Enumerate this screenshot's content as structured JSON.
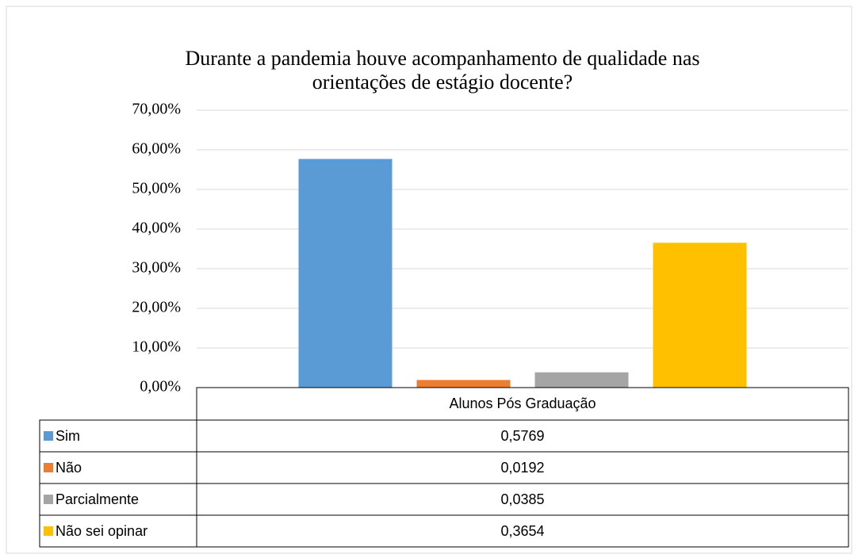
{
  "chart_data": {
    "type": "bar",
    "title": [
      "Durante a pandemia houve acompanhamento de qualidade nas",
      "orientações de estágio docente?"
    ],
    "categories": [
      "Alunos Pós Graduação"
    ],
    "series": [
      {
        "name": "Sim",
        "color": "#5b9bd5",
        "values": [
          57.69
        ],
        "value_labels": [
          "0,5769"
        ]
      },
      {
        "name": "Não",
        "color": "#ed7d31",
        "values": [
          1.92
        ],
        "value_labels": [
          "0,0192"
        ]
      },
      {
        "name": "Parcialmente",
        "color": "#a5a5a5",
        "values": [
          3.85
        ],
        "value_labels": [
          "0,0385"
        ]
      },
      {
        "name": "Não sei opinar",
        "color": "#ffc000",
        "values": [
          36.54
        ],
        "value_labels": [
          "0,3654"
        ]
      }
    ],
    "ylim": [
      0,
      70
    ],
    "yticks": [
      {
        "value": 0,
        "label": "0,00%"
      },
      {
        "value": 10,
        "label": "10,00%"
      },
      {
        "value": 20,
        "label": "20,00%"
      },
      {
        "value": 30,
        "label": "30,00%"
      },
      {
        "value": 40,
        "label": "40,00%"
      },
      {
        "value": 50,
        "label": "50,00%"
      },
      {
        "value": 60,
        "label": "60,00%"
      },
      {
        "value": 70,
        "label": "70,00%"
      }
    ],
    "grid": true
  }
}
